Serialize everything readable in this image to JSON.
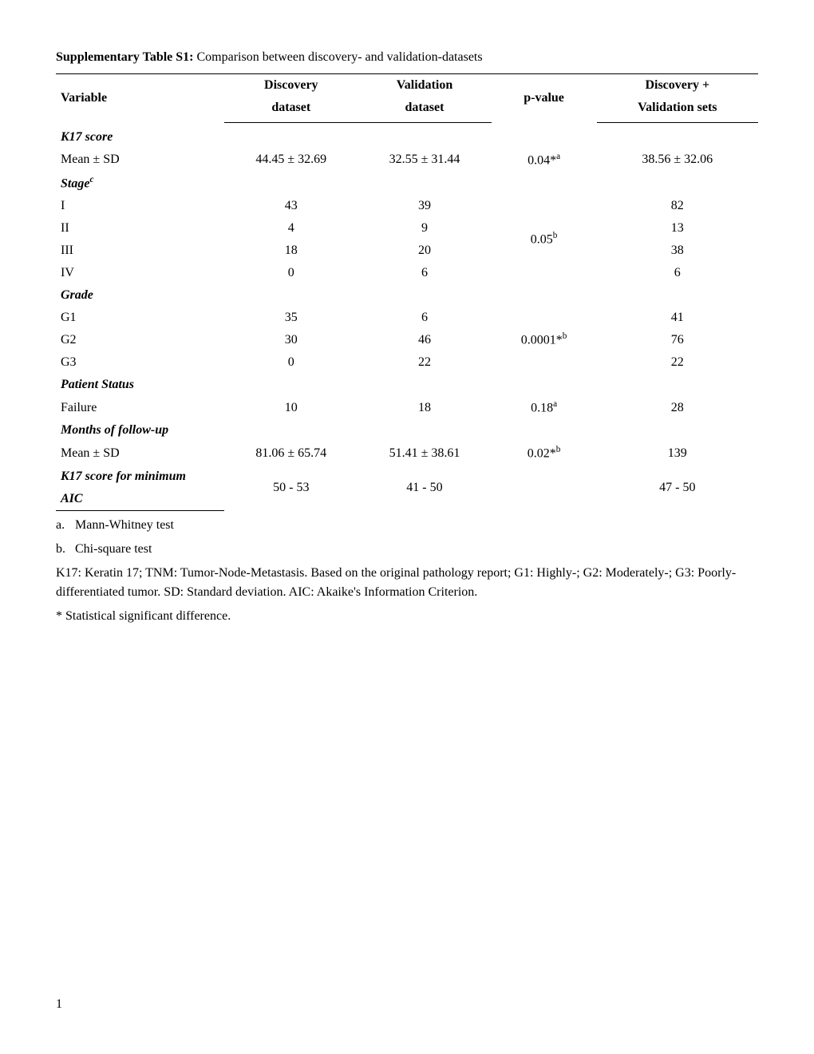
{
  "title": {
    "bold": "Supplementary Table S1:",
    "rest": " Comparison between discovery- and validation-datasets"
  },
  "headers": {
    "variable": "Variable",
    "discovery1": "Discovery",
    "discovery2": "dataset",
    "validation1": "Validation",
    "validation2": "dataset",
    "pvalue": "p-value",
    "combined1": "Discovery +",
    "combined2": "Validation sets"
  },
  "sections": {
    "k17score": {
      "header": "K17 score",
      "mean_label": "Mean ± SD",
      "mean_discovery": "44.45 ± 32.69",
      "mean_validation": "32.55 ± 31.44",
      "mean_pvalue": "0.04*",
      "mean_pvalue_sup": "a",
      "mean_combined": "38.56 ± 32.06"
    },
    "stage": {
      "header": "Stage",
      "header_sup": "c",
      "rows": [
        {
          "label": "I",
          "d": "43",
          "v": "39",
          "c": "82"
        },
        {
          "label": "II",
          "d": "4",
          "v": "9",
          "c": "13"
        },
        {
          "label": "III",
          "d": "18",
          "v": "20",
          "c": "38"
        },
        {
          "label": "IV",
          "d": "0",
          "v": "6",
          "c": "6"
        }
      ],
      "pvalue": "0.05",
      "pvalue_sup": "b"
    },
    "grade": {
      "header": "Grade",
      "rows": [
        {
          "label": "G1",
          "d": "35",
          "v": "6",
          "c": "41"
        },
        {
          "label": "G2",
          "d": "30",
          "v": "46",
          "c": "76"
        },
        {
          "label": "G3",
          "d": "0",
          "v": "22",
          "c": "22"
        }
      ],
      "pvalue": "0.0001*",
      "pvalue_sup": "b"
    },
    "patient_status": {
      "header": "Patient Status",
      "row": {
        "label": "Failure",
        "d": "10",
        "v": "18",
        "c": "28"
      },
      "pvalue": "0.18",
      "pvalue_sup": "a"
    },
    "followup": {
      "header": "Months of follow-up",
      "mean_label": "Mean ± SD",
      "mean_discovery": "81.06 ± 65.74",
      "mean_validation": "51.41 ± 38.61",
      "mean_pvalue": "0.02*",
      "mean_pvalue_sup": "b",
      "mean_combined": "139"
    },
    "aic": {
      "header1": "K17 score for minimum",
      "header2": "AIC",
      "d": "50 - 53",
      "v": "41 - 50",
      "c": "47 - 50"
    }
  },
  "footnotes": {
    "a": {
      "label": "a.",
      "text": "Mann-Whitney test"
    },
    "b": {
      "label": "b.",
      "text": "Chi-square test"
    },
    "defs": "K17: Keratin 17; TNM: Tumor-Node-Metastasis. Based on the original pathology report; G1: Highly-; G2: Moderately-; G3: Poorly- differentiated tumor. SD: Standard deviation. AIC: Akaike's Information Criterion.",
    "star": "* Statistical significant difference."
  },
  "page_number": "1"
}
